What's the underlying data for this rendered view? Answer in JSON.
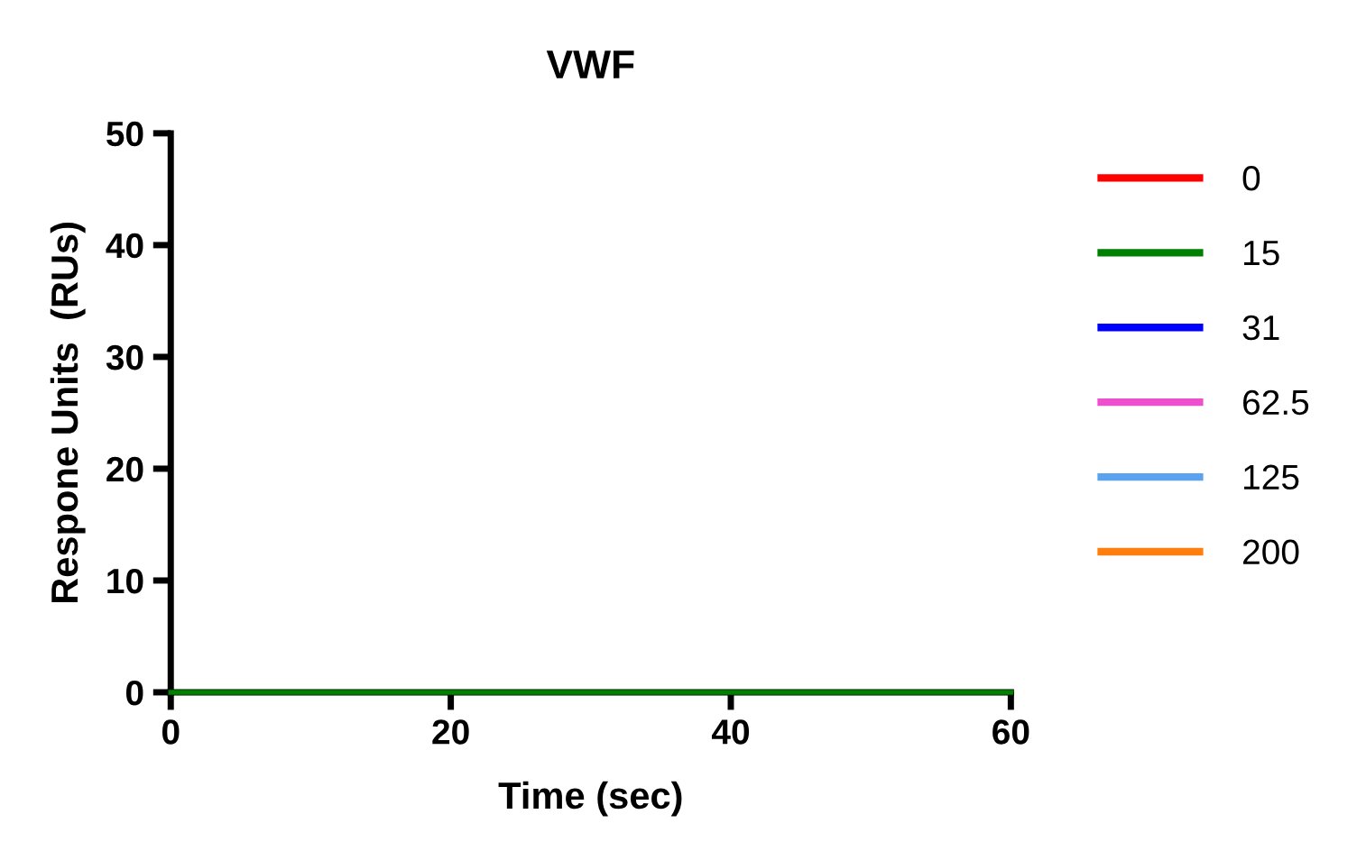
{
  "chart_data": {
    "type": "line",
    "title": "VWF",
    "xlabel": "Time (sec)",
    "ylabel": "Respone Units  (RUs)",
    "x": [
      0,
      60
    ],
    "series": [
      {
        "name": "0",
        "color": "#ff0000",
        "values": [
          null,
          null
        ]
      },
      {
        "name": "15",
        "color": "#008000",
        "values": [
          0,
          0
        ]
      },
      {
        "name": "31",
        "color": "#0000ff",
        "values": [
          null,
          null
        ]
      },
      {
        "name": "62.5",
        "color": "#ee4fcf",
        "values": [
          null,
          null
        ]
      },
      {
        "name": "125",
        "color": "#5ba3f0",
        "values": [
          null,
          null
        ]
      },
      {
        "name": "200",
        "color": "#ff7f0e",
        "values": [
          null,
          null
        ]
      }
    ],
    "xlim": [
      0,
      60
    ],
    "xticks": [
      0,
      20,
      40,
      60
    ],
    "ylim": [
      0,
      50
    ],
    "yticks": [
      0,
      10,
      20,
      30,
      40,
      50
    ],
    "legend": "right",
    "grid": false
  }
}
